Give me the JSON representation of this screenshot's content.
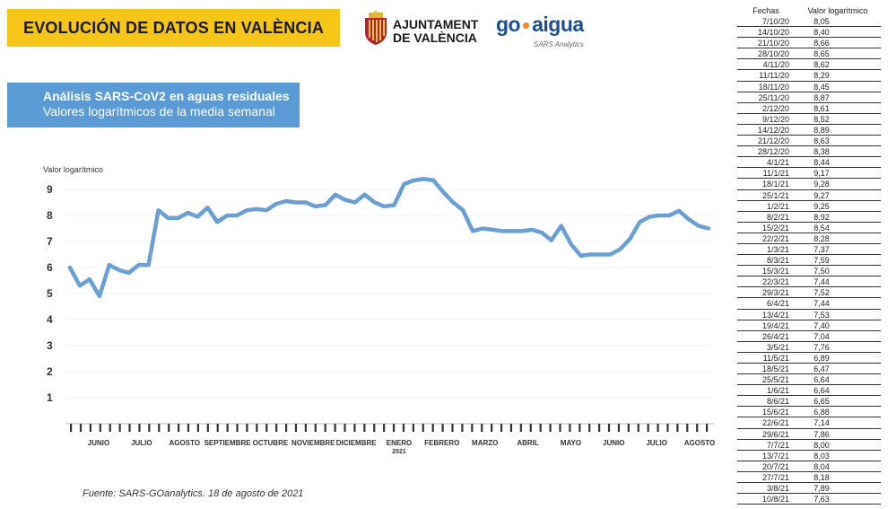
{
  "header": {
    "title": "EVOLUCIÓN DE DATOS EN VALÈNCIA",
    "ajuntament": [
      "AJUNTAMENT",
      "DE VALÈNCIA"
    ],
    "goaigua": {
      "word_left": "go",
      "word_right": "aigua",
      "subtitle": "SARS Analytics"
    }
  },
  "infobox": {
    "line1": "Análisis SARS-CoV2 en aguas residuales",
    "line2": "Valores logarítmicos de la media semanal"
  },
  "source": "Fuente: SARS-GOanalytics. 18 de agosto de 2021",
  "colors": {
    "banner": "#f5c518",
    "infobox": "#5b9bd5",
    "line": "#6a9fd4",
    "brand": "#1d4f91",
    "brand_dot": "#f08a24"
  },
  "chart_data": {
    "type": "line",
    "ylabel": "Valor logarítmico",
    "ylim": [
      0,
      9.5
    ],
    "yticks": [
      1,
      2,
      3,
      4,
      5,
      6,
      7,
      8,
      9
    ],
    "grid": true,
    "months": [
      "JUNIO",
      "JULIO",
      "AGOSTO",
      "SEPTIEMBRE",
      "OCTUBRE",
      "NOVIEMBRE",
      "DICIEMBRE",
      "ENERO 2021",
      "FEBRERO",
      "MARZO",
      "ABRIL",
      "MAYO",
      "JUNIO",
      "JULIO",
      "AGOSTO"
    ],
    "series": [
      {
        "values": [
          6.0,
          5.3,
          5.55,
          4.9,
          6.1,
          5.9,
          5.8,
          6.1,
          6.1,
          8.2,
          7.9,
          7.9,
          8.1,
          7.95,
          8.3,
          7.75,
          8.0,
          8.0,
          8.2,
          8.25,
          8.2,
          8.45,
          8.55,
          8.5,
          8.5,
          8.35,
          8.4,
          8.8,
          8.6,
          8.5,
          8.8,
          8.5,
          8.35,
          8.4,
          9.2,
          9.35,
          9.4,
          9.35,
          8.9,
          8.5,
          8.2,
          7.4,
          7.5,
          7.45,
          7.4,
          7.4,
          7.4,
          7.45,
          7.35,
          7.05,
          7.6,
          6.9,
          6.45,
          6.5,
          6.5,
          6.5,
          6.7,
          7.1,
          7.75,
          7.95,
          8.0,
          8.0,
          8.18,
          7.85,
          7.6,
          7.5
        ]
      }
    ]
  },
  "table": {
    "headers": [
      "Fechas",
      "Valor logarítmico"
    ],
    "rows": [
      [
        "7/10/20",
        "8,05"
      ],
      [
        "14/10/20",
        "8,40"
      ],
      [
        "21/10/20",
        "8,66"
      ],
      [
        "28/10/20",
        "8,65"
      ],
      [
        "4/11/20",
        "8,62"
      ],
      [
        "11/11/20",
        "8,29"
      ],
      [
        "18/11/20",
        "8,45"
      ],
      [
        "25/11/20",
        "8,87"
      ],
      [
        "2/12/20",
        "8,61"
      ],
      [
        "9/12/20",
        "8,52"
      ],
      [
        "14/12/20",
        "8,89"
      ],
      [
        "21/12/20",
        "8,63"
      ],
      [
        "28/12/20",
        "8,38"
      ],
      [
        "4/1/21",
        "8,44"
      ],
      [
        "11/1/21",
        "9,17"
      ],
      [
        "18/1/21",
        "9,28"
      ],
      [
        "25/1/21",
        "9,27"
      ],
      [
        "1/2/21",
        "9,25"
      ],
      [
        "8/2/21",
        "8,92"
      ],
      [
        "15/2/21",
        "8,54"
      ],
      [
        "22/2/21",
        "8,28"
      ],
      [
        "1/3/21",
        "7,37"
      ],
      [
        "8/3/21",
        "7,59"
      ],
      [
        "15/3/21",
        "7,50"
      ],
      [
        "22/3/21",
        "7,44"
      ],
      [
        "29/3/21",
        "7,52"
      ],
      [
        "6/4/21",
        "7,44"
      ],
      [
        "13/4/21",
        "7,53"
      ],
      [
        "19/4/21",
        "7,40"
      ],
      [
        "26/4/21",
        "7,04"
      ],
      [
        "3/5/21",
        "7,76"
      ],
      [
        "11/5/21",
        "6,89"
      ],
      [
        "18/5/21",
        "6,47"
      ],
      [
        "25/5/21",
        "6,64"
      ],
      [
        "1/6/21",
        "6,64"
      ],
      [
        "8/6/21",
        "6,65"
      ],
      [
        "15/6/21",
        "6,88"
      ],
      [
        "22/6/21",
        "7,14"
      ],
      [
        "29/6/21",
        "7,86"
      ],
      [
        "7/7/21",
        "8,00"
      ],
      [
        "13/7/21",
        "8,03"
      ],
      [
        "20/7/21",
        "8,04"
      ],
      [
        "27/7/21",
        "8,18"
      ],
      [
        "3/8/21",
        "7,89"
      ],
      [
        "10/8/21",
        "7,63"
      ]
    ]
  }
}
